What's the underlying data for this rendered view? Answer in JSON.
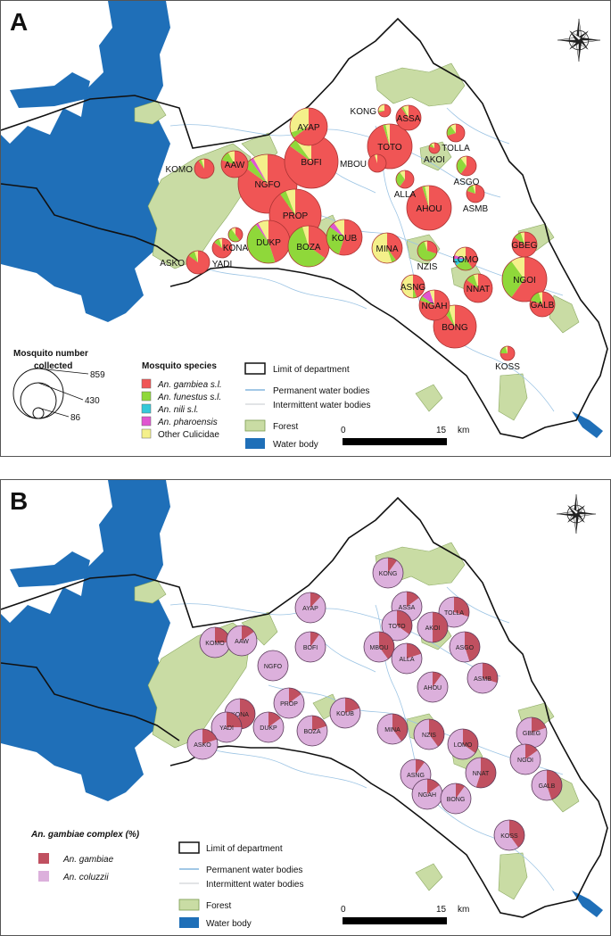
{
  "colors": {
    "water": "#1f6fb8",
    "forest": "#c9dca4",
    "gambiae_sl": "#f05555",
    "funestus": "#8fd83a",
    "nili": "#34c9d9",
    "pharoensis": "#e055d0",
    "other": "#f4f08a",
    "an_gambiae": "#c05060",
    "an_coluzzii": "#dcb0dc",
    "border": "#111111",
    "river": "#9cc4e4"
  },
  "panelA": {
    "letter": "A",
    "legend": {
      "size_title_line1": "Mosquito number",
      "size_title_line2": "collected",
      "size_values": [
        "859",
        "430",
        "86"
      ],
      "species_title": "Mosquito species",
      "species": [
        {
          "label": "An. gambiea s.l.",
          "italic": true,
          "color": "#f05555"
        },
        {
          "label": "An. funestus s.l.",
          "italic": true,
          "color": "#8fd83a"
        },
        {
          "label": "An. nili s.l.",
          "italic": true,
          "color": "#34c9d9"
        },
        {
          "label": "An. pharoensis",
          "italic": true,
          "color": "#e055d0"
        },
        {
          "label": "Other Culicidae",
          "italic": false,
          "color": "#f4f08a"
        }
      ],
      "map_items": {
        "limit": "Limit of department",
        "permanent": "Permanent water bodies",
        "intermittent": "Intermittent water bodies",
        "forest": "Forest",
        "water_body": "Water body"
      },
      "scale": {
        "start": "0",
        "end": "15",
        "unit": "km"
      }
    },
    "sites": [
      {
        "code": "KONG",
        "r": 7,
        "shares": [
          0.7,
          0.05,
          0,
          0,
          0.25
        ]
      },
      {
        "code": "ASSA",
        "r": 14,
        "shares": [
          0.9,
          0.03,
          0,
          0,
          0.07
        ]
      },
      {
        "code": "AYAP",
        "r": 21,
        "shares": [
          0.65,
          0.05,
          0,
          0,
          0.3
        ]
      },
      {
        "code": "TOLLA",
        "r": 10,
        "shares": [
          0.7,
          0.2,
          0,
          0,
          0.1
        ]
      },
      {
        "code": "TOTO",
        "r": 25,
        "shares": [
          0.95,
          0.02,
          0,
          0,
          0.03
        ]
      },
      {
        "code": "AKOI",
        "r": 6,
        "shares": [
          0.8,
          0.1,
          0,
          0,
          0.1
        ]
      },
      {
        "code": "BOFI",
        "r": 30,
        "shares": [
          0.85,
          0.05,
          0,
          0,
          0.1
        ]
      },
      {
        "code": "KOMO",
        "r": 11,
        "shares": [
          0.9,
          0.05,
          0,
          0,
          0.05
        ]
      },
      {
        "code": "AAW",
        "r": 15,
        "shares": [
          0.8,
          0.12,
          0,
          0,
          0.08
        ]
      },
      {
        "code": "MBOU",
        "r": 10,
        "shares": [
          0.95,
          0,
          0,
          0,
          0.05
        ]
      },
      {
        "code": "ASGO",
        "r": 11,
        "shares": [
          0.6,
          0.3,
          0,
          0,
          0.1
        ]
      },
      {
        "code": "ALLA",
        "r": 10,
        "shares": [
          0.6,
          0.3,
          0,
          0,
          0.1
        ]
      },
      {
        "code": "NGFO",
        "r": 33,
        "shares": [
          0.85,
          0.05,
          0,
          0.02,
          0.08
        ]
      },
      {
        "code": "ASMB",
        "r": 10,
        "shares": [
          0.8,
          0.15,
          0,
          0,
          0.05
        ]
      },
      {
        "code": "AHOU",
        "r": 25,
        "shares": [
          0.95,
          0.02,
          0,
          0,
          0.03
        ]
      },
      {
        "code": "PROP",
        "r": 29,
        "shares": [
          0.9,
          0.04,
          0,
          0,
          0.06
        ]
      },
      {
        "code": "KONA",
        "r": 8,
        "shares": [
          0.4,
          0.5,
          0,
          0,
          0.1
        ]
      },
      {
        "code": "KOUB",
        "r": 20,
        "shares": [
          0.55,
          0.3,
          0,
          0.05,
          0.1
        ]
      },
      {
        "code": "YADI",
        "r": 11,
        "shares": [
          0.85,
          0.1,
          0,
          0,
          0.05
        ]
      },
      {
        "code": "DUKP",
        "r": 24,
        "shares": [
          0.45,
          0.45,
          0,
          0.02,
          0.08
        ]
      },
      {
        "code": "BOZA",
        "r": 23,
        "shares": [
          0.35,
          0.6,
          0,
          0,
          0.05
        ]
      },
      {
        "code": "MINA",
        "r": 17,
        "shares": [
          0.4,
          0.05,
          0,
          0,
          0.55
        ]
      },
      {
        "code": "NZIS",
        "r": 11,
        "shares": [
          0.3,
          0.65,
          0,
          0,
          0.05
        ]
      },
      {
        "code": "GBEG",
        "r": 14,
        "shares": [
          0.85,
          0.1,
          0,
          0,
          0.05
        ]
      },
      {
        "code": "LOMO",
        "r": 13,
        "shares": [
          0.4,
          0.25,
          0.1,
          0.05,
          0.2
        ]
      },
      {
        "code": "ASKO",
        "r": 13,
        "shares": [
          0.85,
          0.1,
          0,
          0,
          0.05
        ]
      },
      {
        "code": "NGOI",
        "r": 25,
        "shares": [
          0.6,
          0.3,
          0,
          0,
          0.1
        ]
      },
      {
        "code": "ASNG",
        "r": 13,
        "shares": [
          0.45,
          0.05,
          0,
          0,
          0.5
        ]
      },
      {
        "code": "NNAT",
        "r": 16,
        "shares": [
          0.85,
          0.1,
          0,
          0,
          0.05
        ]
      },
      {
        "code": "NGAH",
        "r": 17,
        "shares": [
          0.8,
          0.05,
          0,
          0.1,
          0.05
        ]
      },
      {
        "code": "BONG",
        "r": 24,
        "shares": [
          0.9,
          0.05,
          0,
          0,
          0.05
        ]
      },
      {
        "code": "GALB",
        "r": 14,
        "shares": [
          0.8,
          0.15,
          0,
          0,
          0.05
        ]
      },
      {
        "code": "KOSS",
        "r": 8,
        "shares": [
          0.75,
          0.2,
          0,
          0,
          0.05
        ]
      }
    ]
  },
  "panelB": {
    "letter": "B",
    "legend": {
      "complex_title": "An. gambiae complex (%)",
      "species": [
        {
          "label": "An. gambiae",
          "color": "#c05060"
        },
        {
          "label": "An. coluzzii",
          "color": "#dcb0dc"
        }
      ],
      "map_items": {
        "limit": "Limit of department",
        "permanent": "Permanent water bodies",
        "intermittent": "Intermittent water bodies",
        "forest": "Forest",
        "water_body": "Water body"
      },
      "scale": {
        "start": "0",
        "end": "15",
        "unit": "km"
      }
    },
    "sites": [
      {
        "code": "KONG",
        "gambiae_pct": 10
      },
      {
        "code": "ASSA",
        "gambiae_pct": 15
      },
      {
        "code": "TOLLA",
        "gambiae_pct": 30
      },
      {
        "code": "AYAP",
        "gambiae_pct": 12
      },
      {
        "code": "TOTO",
        "gambiae_pct": 35
      },
      {
        "code": "AKOI",
        "gambiae_pct": 50
      },
      {
        "code": "KOMO",
        "gambiae_pct": 25
      },
      {
        "code": "AAW",
        "gambiae_pct": 15
      },
      {
        "code": "BOFI",
        "gambiae_pct": 10
      },
      {
        "code": "MBOU",
        "gambiae_pct": 40
      },
      {
        "code": "ASGO",
        "gambiae_pct": 45
      },
      {
        "code": "ALLA",
        "gambiae_pct": 20
      },
      {
        "code": "NGFO",
        "gambiae_pct": 0
      },
      {
        "code": "ASMB",
        "gambiae_pct": 30
      },
      {
        "code": "AHOU",
        "gambiae_pct": 10
      },
      {
        "code": "PROP",
        "gambiae_pct": 15
      },
      {
        "code": "KONA",
        "gambiae_pct": 55
      },
      {
        "code": "KOUB",
        "gambiae_pct": 20
      },
      {
        "code": "YADI",
        "gambiae_pct": 25
      },
      {
        "code": "DUKP",
        "gambiae_pct": 15
      },
      {
        "code": "BOZA",
        "gambiae_pct": 20
      },
      {
        "code": "MINA",
        "gambiae_pct": 40
      },
      {
        "code": "NZIS",
        "gambiae_pct": 40
      },
      {
        "code": "GBEG",
        "gambiae_pct": 20
      },
      {
        "code": "LOMO",
        "gambiae_pct": 35
      },
      {
        "code": "ASKO",
        "gambiae_pct": 20
      },
      {
        "code": "NGOI",
        "gambiae_pct": 15
      },
      {
        "code": "ASNG",
        "gambiae_pct": 10
      },
      {
        "code": "NNAT",
        "gambiae_pct": 55
      },
      {
        "code": "NGAH",
        "gambiae_pct": 15
      },
      {
        "code": "BONG",
        "gambiae_pct": 10
      },
      {
        "code": "GALB",
        "gambiae_pct": 45
      },
      {
        "code": "KOSS",
        "gambiae_pct": 40
      }
    ]
  }
}
